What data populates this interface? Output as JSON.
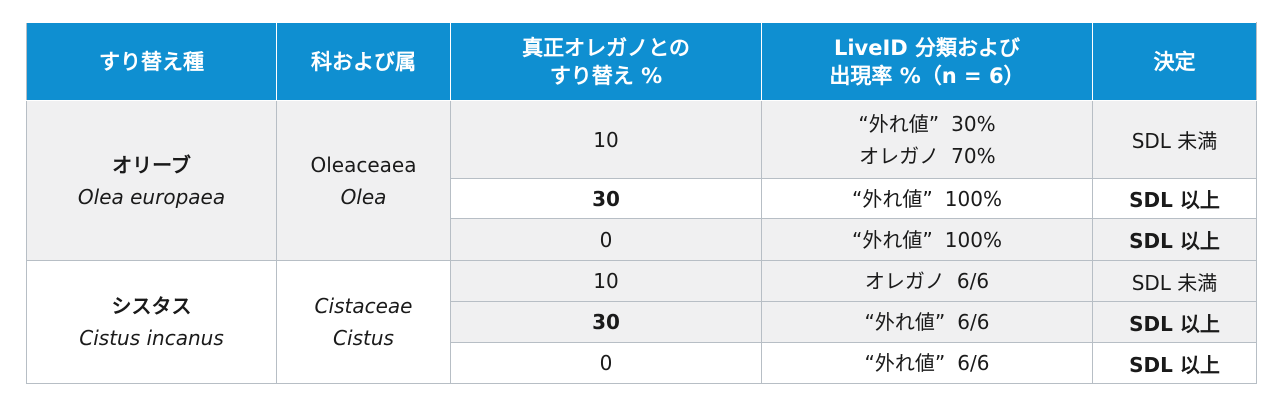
{
  "headers": [
    "すり替え種",
    "科および属",
    "真正オレガノとの\nすり替え %",
    "LiveID 分類および\n出現率 %（n = 6）",
    "決定"
  ],
  "groups": [
    {
      "species_name": "オリーブ",
      "species_latin": "Olea europaea",
      "family": "Oleaceaea",
      "genus": "Olea",
      "rows": [
        {
          "pct": "10",
          "results": [
            {
              "label": "“外れ値”",
              "value": "30%"
            },
            {
              "label": "オレガノ",
              "value": "70%"
            }
          ],
          "decision": "SDL 未満",
          "bold": false
        },
        {
          "pct": "30",
          "results": [
            {
              "label": "“外れ値”",
              "value": "100%"
            }
          ],
          "decision": "SDL 以上",
          "bold": true
        },
        {
          "pct": "0",
          "results": [
            {
              "label": "“外れ値”",
              "value": "100%"
            }
          ],
          "decision": "SDL 以上",
          "bold": true
        }
      ]
    },
    {
      "species_name": "シスタス",
      "species_latin": "Cistus incanus",
      "family": "Cistaceae",
      "genus": "Cistus",
      "rows": [
        {
          "pct": "10",
          "results": [
            {
              "label": "オレガノ",
              "value": "6/6"
            }
          ],
          "decision": "SDL 未満",
          "bold": false
        },
        {
          "pct": "30",
          "results": [
            {
              "label": "“外れ値”",
              "value": "6/6"
            }
          ],
          "decision": "SDL 以上",
          "bold": true
        },
        {
          "pct": "0",
          "results": [
            {
              "label": "“外れ値”",
              "value": "6/6"
            }
          ],
          "decision": "SDL 以上",
          "bold": true
        }
      ]
    }
  ]
}
